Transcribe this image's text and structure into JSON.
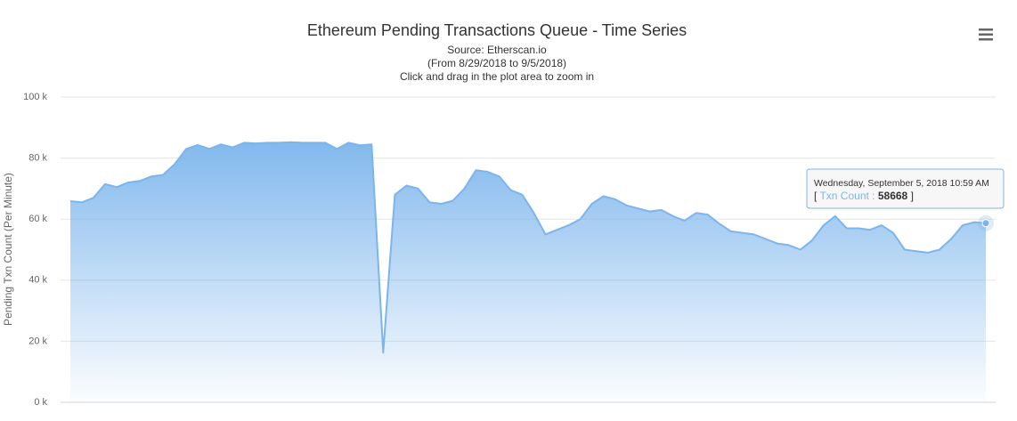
{
  "chart_data": {
    "type": "area",
    "title": "Ethereum Pending Transactions Queue - Time Series",
    "subtitle": [
      "Source: Etherscan.io",
      "(From 8/29/2018 to 9/5/2018)",
      "Click and drag in the plot area to zoom in"
    ],
    "y_label": "Pending Txn Count (Per Minute)",
    "color": "#7cb5ec",
    "grid": true,
    "ylim": [
      0,
      100000
    ],
    "yticks": [
      {
        "value": 0,
        "label": "0 k"
      },
      {
        "value": 20000,
        "label": "20 k"
      },
      {
        "value": 40000,
        "label": "40 k"
      },
      {
        "value": 60000,
        "label": "60 k"
      },
      {
        "value": 80000,
        "label": "80 k"
      },
      {
        "value": 100000,
        "label": "100 k"
      }
    ],
    "categories": [
      null,
      null,
      null,
      null,
      null,
      null,
      null,
      null,
      null,
      null,
      null,
      null,
      null,
      null,
      null,
      null,
      null,
      null,
      null,
      null,
      null,
      null,
      null,
      null,
      null,
      null,
      null,
      null,
      null,
      null,
      null,
      null,
      null,
      null,
      null,
      null,
      null,
      null,
      null,
      null,
      null,
      null,
      null,
      null,
      null,
      null,
      null,
      null,
      null,
      null,
      null,
      null,
      null,
      null,
      null,
      null,
      null,
      null,
      null,
      null,
      null,
      null,
      null,
      null,
      null,
      null,
      null,
      null,
      null,
      null,
      null,
      null,
      null,
      null,
      null,
      null,
      null,
      null,
      null,
      null
    ],
    "values": [
      65900,
      65500,
      67000,
      71500,
      70500,
      72000,
      72500,
      74000,
      74500,
      78000,
      83000,
      84300,
      83000,
      84500,
      83500,
      85000,
      84800,
      85000,
      85000,
      85200,
      85000,
      85000,
      85000,
      83000,
      85000,
      84200,
      84500,
      16300,
      68000,
      71000,
      70000,
      65500,
      65000,
      66000,
      70000,
      76000,
      75500,
      74000,
      69500,
      68000,
      62000,
      55000,
      56500,
      58000,
      60000,
      65000,
      67500,
      66500,
      64500,
      63500,
      62500,
      63000,
      61000,
      59500,
      62000,
      61500,
      58500,
      56000,
      55500,
      55000,
      53500,
      52000,
      51500,
      50000,
      53000,
      58000,
      61000,
      57000,
      57000,
      56500,
      58000,
      55500,
      50000,
      49500,
      49000,
      50000,
      53500,
      58000,
      59000,
      58668
    ],
    "tooltip": {
      "header": "Wednesday, September 5, 2018 10:59 AM",
      "open": "[",
      "name": "Txn Count :",
      "close": "]"
    }
  }
}
